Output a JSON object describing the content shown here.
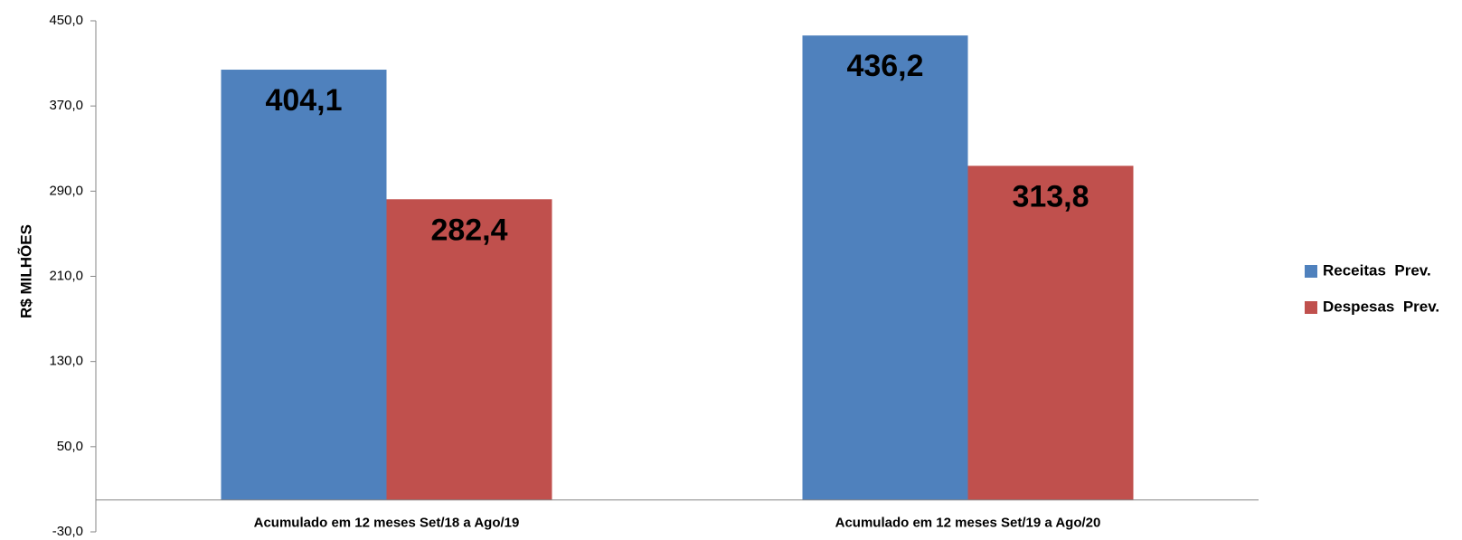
{
  "chart_data": {
    "type": "bar",
    "y_label": "R$ MILHÕES",
    "categories": [
      "Acumulado em 12 meses Set/18  a Ago/19",
      "Acumulado em 12 meses Set/19 a Ago/20"
    ],
    "series": [
      {
        "name": "Receitas  Prev.",
        "color": "#4f81bd",
        "values": [
          404.1,
          436.2
        ],
        "value_labels": [
          "404,1",
          "436,2"
        ]
      },
      {
        "name": "Despesas  Prev.",
        "color": "#c0504d",
        "values": [
          282.4,
          313.8
        ],
        "value_labels": [
          "282,4",
          "313,8"
        ]
      }
    ],
    "ylim": [
      -30,
      450
    ],
    "yticks": [
      {
        "value": -30,
        "label": "-30,0"
      },
      {
        "value": 50,
        "label": "50,0"
      },
      {
        "value": 130,
        "label": "130,0"
      },
      {
        "value": 210,
        "label": "210,0"
      },
      {
        "value": 290,
        "label": "290,0"
      },
      {
        "value": 370,
        "label": "370,0"
      },
      {
        "value": 450,
        "label": "450,0"
      }
    ],
    "grid": false,
    "legend": "right"
  }
}
